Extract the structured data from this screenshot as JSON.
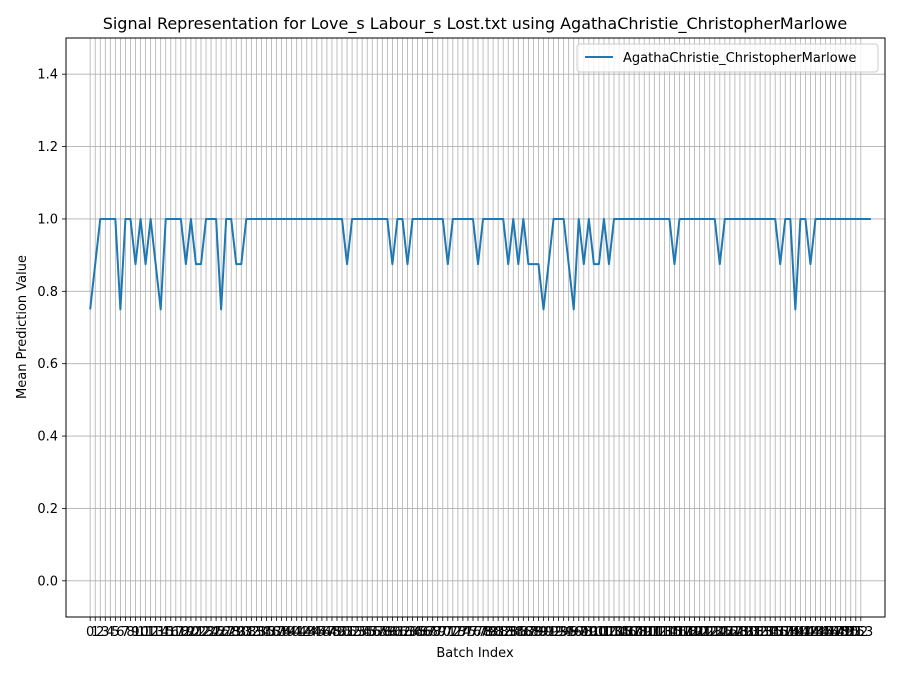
{
  "chart_data": {
    "type": "line",
    "title": "Signal Representation for Love_s Labour_s Lost.txt using AgathaChristie_ChristopherMarlowe",
    "xlabel": "Batch Index",
    "ylabel": "Mean Prediction Value",
    "xlim": [
      -4.8,
      157.8
    ],
    "ylim": [
      -0.1,
      1.5
    ],
    "yticks": [
      0.0,
      0.2,
      0.4,
      0.6,
      0.8,
      1.0,
      1.2,
      1.4
    ],
    "ytick_labels": [
      "0.0",
      "0.2",
      "0.4",
      "0.6",
      "0.8",
      "1.0",
      "1.2",
      "1.4"
    ],
    "xticks_start": 0,
    "xticks_end": 153,
    "grid": true,
    "legend_position": "top-right",
    "series": [
      {
        "name": "AgathaChristie_ChristopherMarlowe",
        "color": "#1f77b4",
        "x_start": 0,
        "values": [
          0.75,
          0.875,
          1.0,
          1.0,
          1.0,
          1.0,
          0.75,
          1.0,
          1.0,
          0.875,
          1.0,
          0.875,
          1.0,
          0.875,
          0.75,
          1.0,
          1.0,
          1.0,
          1.0,
          0.875,
          1.0,
          0.875,
          0.875,
          1.0,
          1.0,
          1.0,
          0.75,
          1.0,
          1.0,
          0.875,
          0.875,
          1.0,
          1.0,
          1.0,
          1.0,
          1.0,
          1.0,
          1.0,
          1.0,
          1.0,
          1.0,
          1.0,
          1.0,
          1.0,
          1.0,
          1.0,
          1.0,
          1.0,
          1.0,
          1.0,
          1.0,
          0.875,
          1.0,
          1.0,
          1.0,
          1.0,
          1.0,
          1.0,
          1.0,
          1.0,
          0.875,
          1.0,
          1.0,
          0.875,
          1.0,
          1.0,
          1.0,
          1.0,
          1.0,
          1.0,
          1.0,
          0.875,
          1.0,
          1.0,
          1.0,
          1.0,
          1.0,
          0.875,
          1.0,
          1.0,
          1.0,
          1.0,
          1.0,
          0.875,
          1.0,
          0.875,
          1.0,
          0.875,
          0.875,
          0.875,
          0.75,
          0.875,
          1.0,
          1.0,
          1.0,
          0.875,
          0.75,
          1.0,
          0.875,
          1.0,
          0.875,
          0.875,
          1.0,
          0.875,
          1.0,
          1.0,
          1.0,
          1.0,
          1.0,
          1.0,
          1.0,
          1.0,
          1.0,
          1.0,
          1.0,
          1.0,
          0.875,
          1.0,
          1.0,
          1.0,
          1.0,
          1.0,
          1.0,
          1.0,
          1.0,
          0.875,
          1.0,
          1.0,
          1.0,
          1.0,
          1.0,
          1.0,
          1.0,
          1.0,
          1.0,
          1.0,
          1.0,
          0.875,
          1.0,
          1.0,
          0.75,
          1.0,
          1.0,
          0.875,
          1.0,
          1.0,
          1.0,
          1.0,
          1.0,
          1.0,
          1.0,
          1.0,
          1.0,
          1.0,
          1.0,
          1.0
        ]
      }
    ]
  }
}
